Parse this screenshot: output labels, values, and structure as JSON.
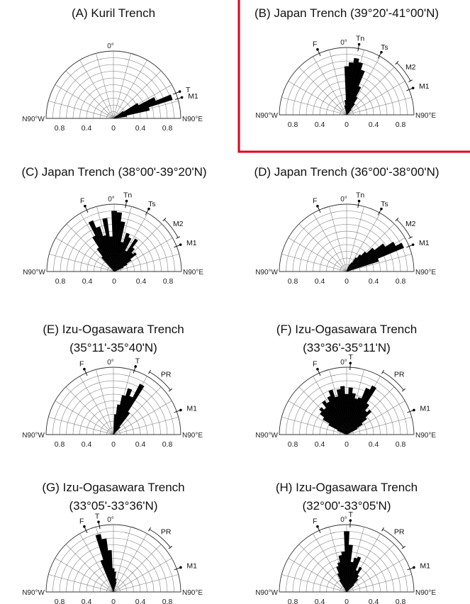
{
  "chart_data": [
    {
      "type": "rose",
      "title": "(A) Kuril Trench",
      "subtitle": "",
      "highlighted": false,
      "rmax": 1.0,
      "range_deg": [
        -90,
        90
      ],
      "edge_labels": {
        "left": "N90°W",
        "right": "N90°E",
        "top": "0°"
      },
      "tick_labels": [
        "0.8",
        "0.4",
        "0",
        "0.4",
        "0.8"
      ],
      "bins_deg": [
        50,
        55,
        60,
        65,
        70,
        75,
        80
      ],
      "values": [
        0.06,
        0.18,
        0.42,
        0.68,
        0.92,
        0.55,
        0.2
      ],
      "markers": [
        {
          "label": "T",
          "angle": 68
        },
        {
          "label": "M1",
          "angle": 73
        }
      ],
      "arcs": []
    },
    {
      "type": "rose",
      "title": "(B) Japan Trench (39°20'-41°00'N)",
      "subtitle": "",
      "highlighted": true,
      "rmax": 1.0,
      "range_deg": [
        -90,
        90
      ],
      "edge_labels": {
        "left": "N90°W",
        "right": "N90°E",
        "top": "0°"
      },
      "tick_labels": [
        "0.8",
        "0.4",
        "0",
        "0.4",
        "0.8"
      ],
      "bins_deg": [
        -10,
        -5,
        0,
        5,
        10,
        15,
        20,
        25,
        30,
        35,
        40,
        45
      ],
      "values": [
        0.14,
        0.22,
        0.72,
        0.78,
        0.85,
        0.8,
        0.7,
        0.46,
        0.3,
        0.2,
        0.1,
        0.06
      ],
      "markers": [
        {
          "label": "F",
          "angle": -24
        },
        {
          "label": "Tn",
          "angle": 10
        },
        {
          "label": "Ts",
          "angle": 29
        },
        {
          "label": "M1",
          "angle": 68
        }
      ],
      "arcs": [
        {
          "label": "M2",
          "from": 44,
          "to": 62
        }
      ]
    },
    {
      "type": "rose",
      "title": "(C) Japan Trench (38°00'-39°20'N)",
      "subtitle": "",
      "highlighted": false,
      "rmax": 1.0,
      "range_deg": [
        -90,
        90
      ],
      "edge_labels": {
        "left": "N90°W",
        "right": "N90°E",
        "top": "0°"
      },
      "tick_labels": [
        "0.8",
        "0.4",
        "0",
        "0.4",
        "0.8"
      ],
      "bins_deg": [
        -40,
        -35,
        -30,
        -25,
        -20,
        -15,
        -10,
        -5,
        0,
        5,
        10,
        15,
        20,
        25,
        30,
        35,
        40,
        45,
        50,
        55,
        60,
        65
      ],
      "values": [
        0.28,
        0.42,
        0.6,
        0.82,
        0.7,
        0.55,
        0.8,
        0.52,
        0.9,
        0.88,
        0.75,
        0.45,
        0.6,
        0.55,
        0.35,
        0.58,
        0.45,
        0.38,
        0.42,
        0.3,
        0.22,
        0.15
      ],
      "markers": [
        {
          "label": "F",
          "angle": -24
        },
        {
          "label": "Tn",
          "angle": 10
        },
        {
          "label": "Ts",
          "angle": 29
        },
        {
          "label": "M1",
          "angle": 68
        }
      ],
      "arcs": [
        {
          "label": "M2",
          "from": 44,
          "to": 62
        }
      ]
    },
    {
      "type": "rose",
      "title": "(D) Japan Trench (36°00'-38°00'N)",
      "subtitle": "",
      "highlighted": false,
      "rmax": 1.0,
      "range_deg": [
        -90,
        90
      ],
      "edge_labels": {
        "left": "N90°W",
        "right": "N90°E",
        "top": "0°"
      },
      "tick_labels": [
        "0.8",
        "0.4",
        "0",
        "0.4",
        "0.8"
      ],
      "bins_deg": [
        20,
        25,
        30,
        35,
        40,
        45,
        50,
        55,
        60,
        65,
        70
      ],
      "values": [
        0.08,
        0.12,
        0.15,
        0.25,
        0.32,
        0.4,
        0.52,
        0.68,
        0.82,
        0.92,
        0.5
      ],
      "markers": [
        {
          "label": "F",
          "angle": -24
        },
        {
          "label": "Tn",
          "angle": 10
        },
        {
          "label": "Ts",
          "angle": 29
        },
        {
          "label": "M1",
          "angle": 68
        }
      ],
      "arcs": [
        {
          "label": "M2",
          "from": 44,
          "to": 62
        }
      ]
    },
    {
      "type": "rose",
      "title": "(E) Izu-Ogasawara Trench",
      "subtitle": "(35°11'-35°40'N)",
      "highlighted": false,
      "rmax": 1.0,
      "range_deg": [
        -90,
        90
      ],
      "edge_labels": {
        "left": "N90°W",
        "right": "N90°E",
        "top": "0°"
      },
      "tick_labels": [
        "0.8",
        "0.4",
        "0",
        "0.4",
        "0.8"
      ],
      "bins_deg": [
        5,
        10,
        15,
        20,
        25,
        30,
        35,
        40
      ],
      "values": [
        0.3,
        0.45,
        0.6,
        0.72,
        0.62,
        0.85,
        0.4,
        0.15
      ],
      "markers": [
        {
          "label": "F",
          "angle": -24
        },
        {
          "label": "T",
          "angle": 18
        },
        {
          "label": "M1",
          "angle": 70
        }
      ],
      "arcs": [
        {
          "label": "PR",
          "from": 30,
          "to": 52
        }
      ]
    },
    {
      "type": "rose",
      "title": "(F) Izu-Ogasawara Trench",
      "subtitle": "(33°36'-35°11'N)",
      "highlighted": false,
      "rmax": 1.0,
      "range_deg": [
        -90,
        90
      ],
      "edge_labels": {
        "left": "N90°W",
        "right": "N90°E",
        "top": "0°"
      },
      "tick_labels": [
        "0.8",
        "0.4",
        "0",
        "0.4",
        "0.8"
      ],
      "bins_deg": [
        -65,
        -60,
        -55,
        -50,
        -45,
        -40,
        -35,
        -30,
        -25,
        -20,
        -15,
        -10,
        -5,
        0,
        5,
        10,
        15,
        20,
        25,
        30,
        35,
        40,
        45,
        50,
        55,
        60
      ],
      "values": [
        0.15,
        0.3,
        0.42,
        0.5,
        0.55,
        0.5,
        0.6,
        0.55,
        0.62,
        0.7,
        0.58,
        0.68,
        0.72,
        0.6,
        0.7,
        0.62,
        0.55,
        0.58,
        0.75,
        0.82,
        0.55,
        0.45,
        0.5,
        0.38,
        0.28,
        0.18
      ],
      "markers": [
        {
          "label": "F",
          "angle": -24
        },
        {
          "label": "T",
          "angle": 3
        },
        {
          "label": "M1",
          "angle": 70
        }
      ],
      "arcs": [
        {
          "label": "PR",
          "from": 30,
          "to": 52
        }
      ]
    },
    {
      "type": "rose",
      "title": "(G) Izu-Ogasawara Trench",
      "subtitle": "(33°05'-33°36'N)",
      "highlighted": false,
      "rmax": 1.0,
      "range_deg": [
        -90,
        90
      ],
      "edge_labels": {
        "left": "N90°W",
        "right": "N90°E",
        "top": "0°"
      },
      "tick_labels": [
        "0.8",
        "0.4",
        "0",
        "0.4",
        "0.8"
      ],
      "bins_deg": [
        -20,
        -15,
        -10,
        -5,
        0,
        5,
        10,
        15
      ],
      "values": [
        0.5,
        0.88,
        0.8,
        0.62,
        0.35,
        0.3,
        0.2,
        0.15
      ],
      "markers": [
        {
          "label": "F",
          "angle": -24
        },
        {
          "label": "T",
          "angle": -12
        },
        {
          "label": "M1",
          "angle": 70
        }
      ],
      "arcs": [
        {
          "label": "PR",
          "from": 30,
          "to": 52
        }
      ]
    },
    {
      "type": "rose",
      "title": "(H) Izu-Ogasawara Trench",
      "subtitle": "(32°00'-33°05'N)",
      "highlighted": false,
      "rmax": 1.0,
      "range_deg": [
        -90,
        90
      ],
      "edge_labels": {
        "left": "N90°W",
        "right": "N90°E",
        "top": "0°"
      },
      "tick_labels": [
        "0.8",
        "0.4",
        "0",
        "0.4",
        "0.8"
      ],
      "bins_deg": [
        -30,
        -25,
        -20,
        -15,
        -10,
        -5,
        0,
        5,
        10,
        15,
        20,
        25,
        30,
        35,
        40,
        45
      ],
      "values": [
        0.2,
        0.3,
        0.4,
        0.45,
        0.55,
        0.6,
        0.9,
        0.7,
        0.45,
        0.52,
        0.55,
        0.35,
        0.42,
        0.3,
        0.25,
        0.15
      ],
      "markers": [
        {
          "label": "F",
          "angle": -24
        },
        {
          "label": "T",
          "angle": 3
        },
        {
          "label": "M1",
          "angle": 70
        }
      ],
      "arcs": [
        {
          "label": "PR",
          "from": 30,
          "to": 52
        }
      ]
    }
  ],
  "highlight_color": "#e0001b",
  "marker_color": "#000000",
  "petal_color": "#000000",
  "grid_color": "#7a7a7a"
}
